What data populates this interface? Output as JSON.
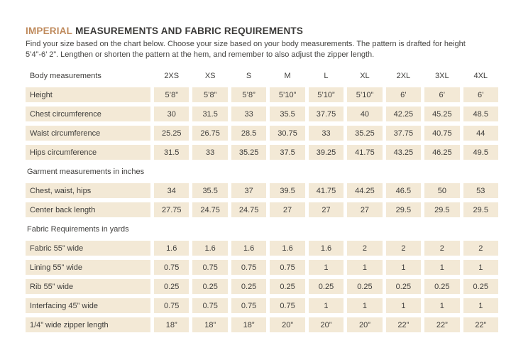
{
  "colors": {
    "accent": "#bf8a5c",
    "cell_bg": "#f3e9d6",
    "text": "#3f3e3c"
  },
  "header": {
    "title_accent": "IMPERIAL",
    "title_rest": "MEASUREMENTS AND FABRIC REQUIREMENTS",
    "subtitle_line1": "Find your size based on the chart below. Choose your size based on your body measurements. The pattern is drafted for height",
    "subtitle_line2": "5’4”-6’ 2”. Lengthen or shorten the pattern at the hem, and remember to also adjust the zipper length."
  },
  "table": {
    "sizes": [
      "2XS",
      "XS",
      "S",
      "M",
      "L",
      "XL",
      "2XL",
      "3XL",
      "4XL"
    ],
    "sections": [
      {
        "heading": "Body measurements",
        "rows": [
          {
            "label": "Height",
            "values": [
              "5’8”",
              "5’8”",
              "5’8”",
              "5’10”",
              "5’10”",
              "5’10”",
              "6’",
              "6’",
              "6’"
            ]
          },
          {
            "label": "Chest circumference",
            "values": [
              "30",
              "31.5",
              "33",
              "35.5",
              "37.75",
              "40",
              "42.25",
              "45.25",
              "48.5"
            ]
          },
          {
            "label": "Waist circumference",
            "values": [
              "25.25",
              "26.75",
              "28.5",
              "30.75",
              "33",
              "35.25",
              "37.75",
              "40.75",
              "44"
            ]
          },
          {
            "label": "Hips circumference",
            "values": [
              "31.5",
              "33",
              "35.25",
              "37.5",
              "39.25",
              "41.75",
              "43.25",
              "46.25",
              "49.5"
            ]
          }
        ]
      },
      {
        "heading": "Garment measurements in inches",
        "rows": [
          {
            "label": "Chest, waist, hips",
            "values": [
              "34",
              "35.5",
              "37",
              "39.5",
              "41.75",
              "44.25",
              "46.5",
              "50",
              "53"
            ]
          },
          {
            "label": "Center back length",
            "values": [
              "27.75",
              "24.75",
              "24.75",
              "27",
              "27",
              "27",
              "29.5",
              "29.5",
              "29.5"
            ]
          }
        ]
      },
      {
        "heading": "Fabric Requirements in yards",
        "rows": [
          {
            "label": "Fabric 55” wide",
            "values": [
              "1.6",
              "1.6",
              "1.6",
              "1.6",
              "1.6",
              "2",
              "2",
              "2",
              "2"
            ]
          },
          {
            "label": "Lining 55” wide",
            "values": [
              "0.75",
              "0.75",
              "0.75",
              "0.75",
              "1",
              "1",
              "1",
              "1",
              "1"
            ]
          },
          {
            "label": "Rib 55” wide",
            "values": [
              "0.25",
              "0.25",
              "0.25",
              "0.25",
              "0.25",
              "0.25",
              "0.25",
              "0.25",
              "0.25"
            ]
          },
          {
            "label": "Interfacing 45” wide",
            "values": [
              "0.75",
              "0.75",
              "0.75",
              "0.75",
              "1",
              "1",
              "1",
              "1",
              "1"
            ]
          },
          {
            "label": "1/4” wide zipper length",
            "values": [
              "18”",
              "18”",
              "18”",
              "20”",
              "20”",
              "20”",
              "22”",
              "22”",
              "22”"
            ]
          }
        ]
      }
    ]
  }
}
